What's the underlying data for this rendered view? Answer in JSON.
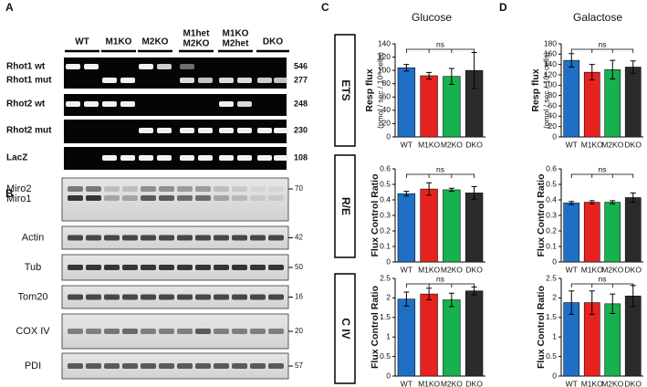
{
  "panel_labels": [
    "A",
    "B",
    "C",
    "D"
  ],
  "gel": {
    "groups": [
      [
        "WT"
      ],
      [
        "M1KO"
      ],
      [
        "M2KO"
      ],
      [
        "M1het",
        "M2KO"
      ],
      [
        "M1KO",
        "M2het"
      ],
      [
        "DKO"
      ]
    ],
    "rows": [
      "Rhot1 wt",
      "Rhot1 mut",
      "Rhot2 wt",
      "Rhot2 mut",
      "LacZ"
    ],
    "sizes": [
      546,
      277,
      248,
      230,
      108
    ]
  },
  "blot": {
    "rows": [
      [
        "Miro2",
        "Miro1"
      ],
      [
        "Actin"
      ],
      [
        "Tub"
      ],
      [
        "Tom20"
      ],
      [
        "COX IV"
      ],
      [
        "PDI"
      ]
    ],
    "sizes": [
      70,
      42,
      50,
      16,
      20,
      57
    ]
  },
  "conditions": [
    "Glucose",
    "Galactose"
  ],
  "measures": [
    "ETS",
    "R/E",
    "C IV"
  ],
  "chart_data": [
    {
      "type": "bar",
      "y_label": [
        "Resp flux",
        "(pmol / sec / 10⁶ cells)"
      ],
      "categories": [
        "WT",
        "M1KO",
        "M2KO",
        "DKO"
      ],
      "values": [
        104,
        92,
        91,
        100
      ],
      "errors": [
        5,
        5,
        12,
        27
      ],
      "colors": [
        "#1f6fc5",
        "#e8231f",
        "#17b14f",
        "#2b2b2b"
      ],
      "ylim": [
        0,
        140
      ],
      "yticks": [
        0,
        20,
        40,
        60,
        80,
        100,
        120,
        140
      ],
      "annotation": "ns"
    },
    {
      "type": "bar",
      "y_label": [
        "Flux Control Ratio"
      ],
      "categories": [
        "WT",
        "M1KO",
        "M2KO",
        "DKO"
      ],
      "values": [
        0.44,
        0.47,
        0.465,
        0.445
      ],
      "errors": [
        0.015,
        0.04,
        0.01,
        0.04
      ],
      "colors": [
        "#1f6fc5",
        "#e8231f",
        "#17b14f",
        "#2b2b2b"
      ],
      "ylim": [
        0,
        0.6
      ],
      "yticks": [
        0,
        0.1,
        0.2,
        0.3,
        0.4,
        0.5,
        0.6
      ],
      "annotation": "ns"
    },
    {
      "type": "bar",
      "y_label": [
        "Flux Control Ratio"
      ],
      "categories": [
        "WT",
        "M1KO",
        "M2KO",
        "DKO"
      ],
      "values": [
        1.97,
        2.1,
        1.95,
        2.18
      ],
      "errors": [
        0.18,
        0.15,
        0.17,
        0.1
      ],
      "colors": [
        "#1f6fc5",
        "#e8231f",
        "#17b14f",
        "#2b2b2b"
      ],
      "ylim": [
        0,
        2.5
      ],
      "yticks": [
        0,
        0.5,
        1,
        1.5,
        2,
        2.5
      ],
      "annotation": "ns"
    },
    {
      "type": "bar",
      "y_label": [
        "Resp flux",
        "(pmol / sec / 10⁶ cells)"
      ],
      "categories": [
        "WT",
        "M1KO",
        "M2KO",
        "DKO"
      ],
      "values": [
        148,
        125,
        130,
        135
      ],
      "errors": [
        13,
        15,
        18,
        12
      ],
      "colors": [
        "#1f6fc5",
        "#e8231f",
        "#17b14f",
        "#2b2b2b"
      ],
      "ylim": [
        0,
        180
      ],
      "yticks": [
        0,
        20,
        40,
        60,
        80,
        100,
        120,
        140,
        160,
        180
      ],
      "annotation": "ns"
    },
    {
      "type": "bar",
      "y_label": [
        "Flux Control Ratio"
      ],
      "categories": [
        "WT",
        "M1KO",
        "M2KO",
        "DKO"
      ],
      "values": [
        0.38,
        0.385,
        0.385,
        0.415
      ],
      "errors": [
        0.01,
        0.01,
        0.01,
        0.03
      ],
      "colors": [
        "#1f6fc5",
        "#e8231f",
        "#17b14f",
        "#2b2b2b"
      ],
      "ylim": [
        0,
        0.6
      ],
      "yticks": [
        0,
        0.1,
        0.2,
        0.3,
        0.4,
        0.5,
        0.6
      ],
      "annotation": "ns"
    },
    {
      "type": "bar",
      "y_label": [
        "Flux Control Ratio"
      ],
      "categories": [
        "WT",
        "M1KO",
        "M2KO",
        "DKO"
      ],
      "values": [
        1.88,
        1.88,
        1.85,
        2.05
      ],
      "errors": [
        0.3,
        0.3,
        0.25,
        0.27
      ],
      "colors": [
        "#1f6fc5",
        "#e8231f",
        "#17b14f",
        "#2b2b2b"
      ],
      "ylim": [
        0,
        2.5
      ],
      "yticks": [
        0,
        0.5,
        1,
        1.5,
        2,
        2.5
      ],
      "annotation": "ns"
    }
  ]
}
